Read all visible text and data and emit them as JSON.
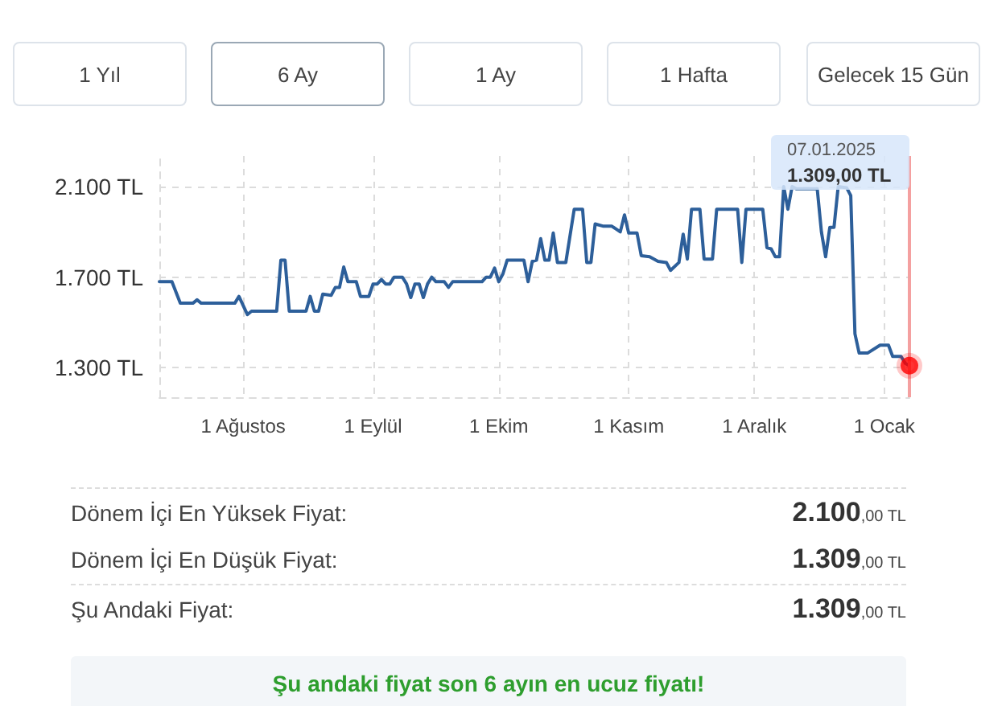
{
  "chart_data": {
    "type": "line",
    "x": [
      "2024-07-12",
      "2024-07-15",
      "2024-07-17",
      "2024-07-20",
      "2024-07-21",
      "2024-07-22",
      "2024-07-30",
      "2024-07-31",
      "2024-08-02",
      "2024-08-03",
      "2024-08-09",
      "2024-08-10",
      "2024-08-11",
      "2024-08-12",
      "2024-08-16",
      "2024-08-17",
      "2024-08-18",
      "2024-08-19",
      "2024-08-20",
      "2024-08-22",
      "2024-08-23",
      "2024-08-24",
      "2024-08-25",
      "2024-08-26",
      "2024-08-28",
      "2024-08-29",
      "2024-08-31",
      "2024-09-01",
      "2024-09-02",
      "2024-09-03",
      "2024-09-04",
      "2024-09-05",
      "2024-09-06",
      "2024-09-08",
      "2024-09-09",
      "2024-09-10",
      "2024-09-11",
      "2024-09-12",
      "2024-09-13",
      "2024-09-14",
      "2024-09-15",
      "2024-09-16",
      "2024-09-18",
      "2024-09-19",
      "2024-09-20",
      "2024-09-27",
      "2024-09-28",
      "2024-09-29",
      "2024-09-30",
      "2024-10-01",
      "2024-10-02",
      "2024-10-03",
      "2024-10-07",
      "2024-10-08",
      "2024-10-09",
      "2024-10-10",
      "2024-10-11",
      "2024-10-12",
      "2024-10-13",
      "2024-10-14",
      "2024-10-15",
      "2024-10-17",
      "2024-10-19",
      "2024-10-21",
      "2024-10-22",
      "2024-10-23",
      "2024-10-24",
      "2024-10-26",
      "2024-10-28",
      "2024-10-30",
      "2024-10-31",
      "2024-11-01",
      "2024-11-03",
      "2024-11-04",
      "2024-11-06",
      "2024-11-08",
      "2024-11-10",
      "2024-11-11",
      "2024-11-13",
      "2024-11-14",
      "2024-11-15",
      "2024-11-16",
      "2024-11-18",
      "2024-11-19",
      "2024-11-21",
      "2024-11-22",
      "2024-11-27",
      "2024-11-28",
      "2024-11-29",
      "2024-12-03",
      "2024-12-04",
      "2024-12-05",
      "2024-12-06",
      "2024-12-07",
      "2024-12-08",
      "2024-12-09",
      "2024-12-10",
      "2024-12-11",
      "2024-12-16",
      "2024-12-17",
      "2024-12-18",
      "2024-12-19",
      "2024-12-20",
      "2024-12-21",
      "2024-12-23",
      "2024-12-24",
      "2024-12-25",
      "2024-12-26",
      "2024-12-28",
      "2024-12-31",
      "2025-01-02",
      "2025-01-03",
      "2025-01-05",
      "2025-01-06",
      "2025-01-07"
    ],
    "series": [
      {
        "color": "#2d5f9a",
        "values": [
          1680,
          1680,
          1585,
          1585,
          1600,
          1585,
          1585,
          1615,
          1535,
          1550,
          1550,
          1775,
          1775,
          1550,
          1550,
          1615,
          1550,
          1550,
          1625,
          1620,
          1655,
          1655,
          1745,
          1680,
          1680,
          1615,
          1615,
          1670,
          1670,
          1690,
          1670,
          1670,
          1700,
          1700,
          1670,
          1610,
          1670,
          1670,
          1610,
          1670,
          1700,
          1680,
          1680,
          1655,
          1680,
          1680,
          1700,
          1700,
          1740,
          1680,
          1715,
          1775,
          1775,
          1680,
          1770,
          1775,
          1870,
          1775,
          1775,
          1895,
          1765,
          1765,
          2000,
          2000,
          1765,
          1765,
          1935,
          1925,
          1925,
          1900,
          1975,
          1895,
          1895,
          1795,
          1790,
          1770,
          1765,
          1730,
          1765,
          1890,
          1780,
          2000,
          2000,
          1780,
          1780,
          2000,
          2000,
          1765,
          2000,
          2000,
          1830,
          1825,
          1790,
          1790,
          2100,
          2000,
          2100,
          2090,
          2090,
          1900,
          1790,
          1920,
          1920,
          2100,
          2095,
          2060,
          1450,
          1365,
          1365,
          1400,
          1400,
          1350,
          1350,
          1320,
          1309
        ]
      },
      {
        "type": "scatter",
        "marker": "circle",
        "color": "#ff0000",
        "x": [
          "2025-01-07"
        ],
        "values": [
          1309
        ]
      }
    ],
    "xlim": [
      "2024-07-12",
      "2025-01-07"
    ],
    "xticks": [
      {
        "value": "2024-08-01",
        "label": "1 Ağustos"
      },
      {
        "value": "2024-09-01",
        "label": "1 Eylül"
      },
      {
        "value": "2024-10-01",
        "label": "1 Ekim"
      },
      {
        "value": "2024-11-01",
        "label": "1 Kasım"
      },
      {
        "value": "2024-12-01",
        "label": "1 Aralık"
      },
      {
        "value": "2025-01-01",
        "label": "1 Ocak"
      }
    ],
    "ylim": [
      1170,
      2235
    ],
    "yticks": [
      {
        "value": 1300,
        "label": "1.300 TL"
      },
      {
        "value": 1700,
        "label": "1.700 TL"
      },
      {
        "value": 2100,
        "label": "2.100 TL"
      }
    ],
    "ref_lines": [
      {
        "axis": "x",
        "value": "2025-01-07",
        "color": "#f4a0a0"
      }
    ],
    "grid": true,
    "marker": "none",
    "line_style": "solid",
    "annotations": [
      "1 Yıl",
      "6 Ay",
      "1 Ay",
      "1 Hafta",
      "Gelecek 15 Gün",
      "Dönem İçi En Yüksek Fiyat:",
      "2.100,00 TL",
      "Dönem İçi En Düşük Fiyat:",
      "1.309,00 TL",
      "Şu Andaki Fiyat:",
      "1.309,00 TL",
      "Şu andaki fiyat son 6 ayın en ucuz fiyatı!",
      "07.01.2025",
      "1.309,00 TL"
    ]
  }
}
